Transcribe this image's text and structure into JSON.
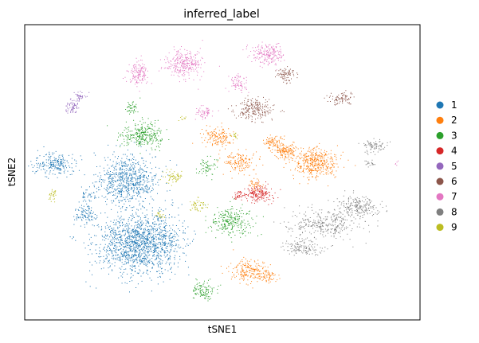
{
  "chart_data": {
    "type": "scatter",
    "title": "inferred_label",
    "xlabel": "tSNE1",
    "ylabel": "tSNE2",
    "xticks": [],
    "yticks": [],
    "grid": false,
    "legend": {
      "placement": "right",
      "entries": [
        {
          "label": "1",
          "color": "#1f77b4"
        },
        {
          "label": "2",
          "color": "#ff7f0e"
        },
        {
          "label": "3",
          "color": "#2ca02c"
        },
        {
          "label": "4",
          "color": "#d62728"
        },
        {
          "label": "5",
          "color": "#9467bd"
        },
        {
          "label": "6",
          "color": "#8c564b"
        },
        {
          "label": "7",
          "color": "#e377c2"
        },
        {
          "label": "8",
          "color": "#7f7f7f"
        },
        {
          "label": "9",
          "color": "#bcbd22"
        }
      ]
    }
  }
}
